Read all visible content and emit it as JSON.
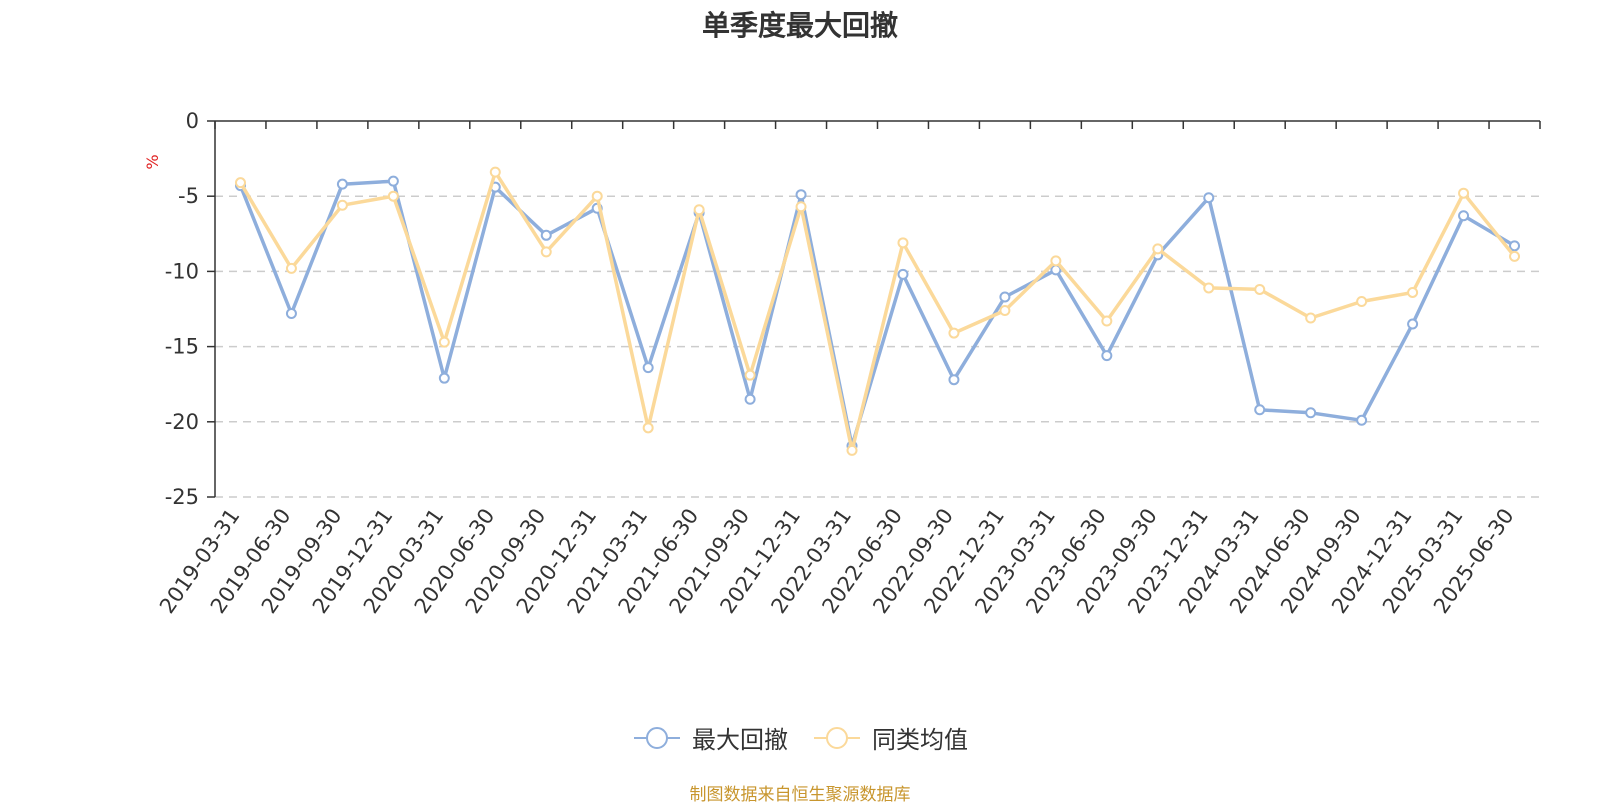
{
  "chart_data": {
    "type": "line",
    "title": "单季度最大回撤",
    "ylabel": "%",
    "ylim": [
      -25,
      0
    ],
    "yticks": [
      0,
      -5,
      -10,
      -15,
      -20,
      -25
    ],
    "grid": true,
    "legend_position": "bottom",
    "categories": [
      "2019-03-31",
      "2019-06-30",
      "2019-09-30",
      "2019-12-31",
      "2020-03-31",
      "2020-06-30",
      "2020-09-30",
      "2020-12-31",
      "2021-03-31",
      "2021-06-30",
      "2021-09-30",
      "2021-12-31",
      "2022-03-31",
      "2022-06-30",
      "2022-09-30",
      "2022-12-31",
      "2023-03-31",
      "2023-06-30",
      "2023-09-30",
      "2023-12-31",
      "2024-03-31",
      "2024-06-30",
      "2024-09-30",
      "2024-12-31",
      "2025-03-31",
      "2025-06-30"
    ],
    "series": [
      {
        "name": "最大回撤",
        "color": "#8eaedc",
        "values": [
          -4.3,
          -12.8,
          -4.2,
          -4.0,
          -17.1,
          -4.4,
          -7.6,
          -5.8,
          -16.4,
          -6.1,
          -18.5,
          -4.9,
          -21.6,
          -10.2,
          -17.2,
          -11.7,
          -9.9,
          -15.6,
          -8.9,
          -5.1,
          -19.2,
          -19.4,
          -19.9,
          -13.5,
          -6.3,
          -8.3
        ]
      },
      {
        "name": "同类均值",
        "color": "#fbd99a",
        "values": [
          -4.1,
          -9.8,
          -5.6,
          -5.0,
          -14.7,
          -3.4,
          -8.7,
          -5.0,
          -20.4,
          -5.9,
          -16.9,
          -5.7,
          -21.9,
          -8.1,
          -14.1,
          -12.6,
          -9.3,
          -13.3,
          -8.5,
          -11.1,
          -11.2,
          -13.1,
          -12.0,
          -11.4,
          -4.8,
          -9.0
        ]
      }
    ]
  },
  "source_note": "制图数据来自恒生聚源数据库"
}
